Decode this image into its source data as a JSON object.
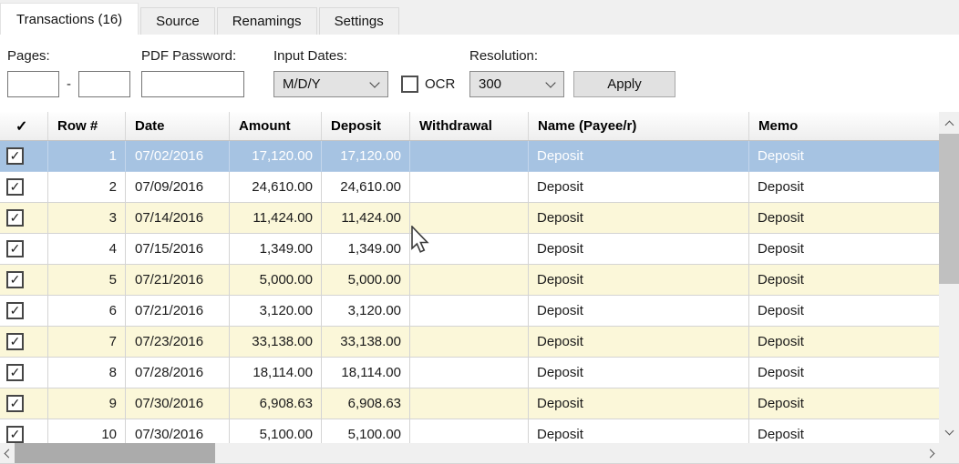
{
  "tabs": [
    {
      "label": "Transactions (16)",
      "active": true
    },
    {
      "label": "Source",
      "active": false
    },
    {
      "label": "Renamings",
      "active": false
    },
    {
      "label": "Settings",
      "active": false
    }
  ],
  "controls": {
    "pages_label": "Pages:",
    "pages_separator": "-",
    "pages_from_value": "",
    "pages_to_value": "",
    "pdf_password_label": "PDF Password:",
    "pdf_password_value": "",
    "input_dates_label": "Input Dates:",
    "input_dates_value": "M/D/Y",
    "ocr_label": "OCR",
    "ocr_checked": false,
    "resolution_label": "Resolution:",
    "resolution_value": "300",
    "apply_label": "Apply"
  },
  "table": {
    "columns": [
      "✓",
      "Row #",
      "Date",
      "Amount",
      "Deposit",
      "Withdrawal",
      "Name (Payee/r)",
      "Memo"
    ],
    "rows": [
      {
        "checked": true,
        "selected": true,
        "row": "1",
        "date": "07/02/2016",
        "amount": "17,120.00",
        "deposit": "17,120.00",
        "withdrawal": "",
        "name": "Deposit",
        "memo": "Deposit"
      },
      {
        "checked": true,
        "selected": false,
        "row": "2",
        "date": "07/09/2016",
        "amount": "24,610.00",
        "deposit": "24,610.00",
        "withdrawal": "",
        "name": "Deposit",
        "memo": "Deposit"
      },
      {
        "checked": true,
        "selected": false,
        "row": "3",
        "date": "07/14/2016",
        "amount": "11,424.00",
        "deposit": "11,424.00",
        "withdrawal": "",
        "name": "Deposit",
        "memo": "Deposit"
      },
      {
        "checked": true,
        "selected": false,
        "row": "4",
        "date": "07/15/2016",
        "amount": "1,349.00",
        "deposit": "1,349.00",
        "withdrawal": "",
        "name": "Deposit",
        "memo": "Deposit"
      },
      {
        "checked": true,
        "selected": false,
        "row": "5",
        "date": "07/21/2016",
        "amount": "5,000.00",
        "deposit": "5,000.00",
        "withdrawal": "",
        "name": "Deposit",
        "memo": "Deposit"
      },
      {
        "checked": true,
        "selected": false,
        "row": "6",
        "date": "07/21/2016",
        "amount": "3,120.00",
        "deposit": "3,120.00",
        "withdrawal": "",
        "name": "Deposit",
        "memo": "Deposit"
      },
      {
        "checked": true,
        "selected": false,
        "row": "7",
        "date": "07/23/2016",
        "amount": "33,138.00",
        "deposit": "33,138.00",
        "withdrawal": "",
        "name": "Deposit",
        "memo": "Deposit"
      },
      {
        "checked": true,
        "selected": false,
        "row": "8",
        "date": "07/28/2016",
        "amount": "18,114.00",
        "deposit": "18,114.00",
        "withdrawal": "",
        "name": "Deposit",
        "memo": "Deposit"
      },
      {
        "checked": true,
        "selected": false,
        "row": "9",
        "date": "07/30/2016",
        "amount": "6,908.63",
        "deposit": "6,908.63",
        "withdrawal": "",
        "name": "Deposit",
        "memo": "Deposit"
      },
      {
        "checked": true,
        "selected": false,
        "row": "10",
        "date": "07/30/2016",
        "amount": "5,100.00",
        "deposit": "5,100.00",
        "withdrawal": "",
        "name": "Deposit",
        "memo": "Deposit"
      }
    ]
  },
  "colors": {
    "selected_row": "#a6c3e2",
    "stripe_row": "#fbf7d9",
    "grid_line": "#d4d4d4"
  }
}
